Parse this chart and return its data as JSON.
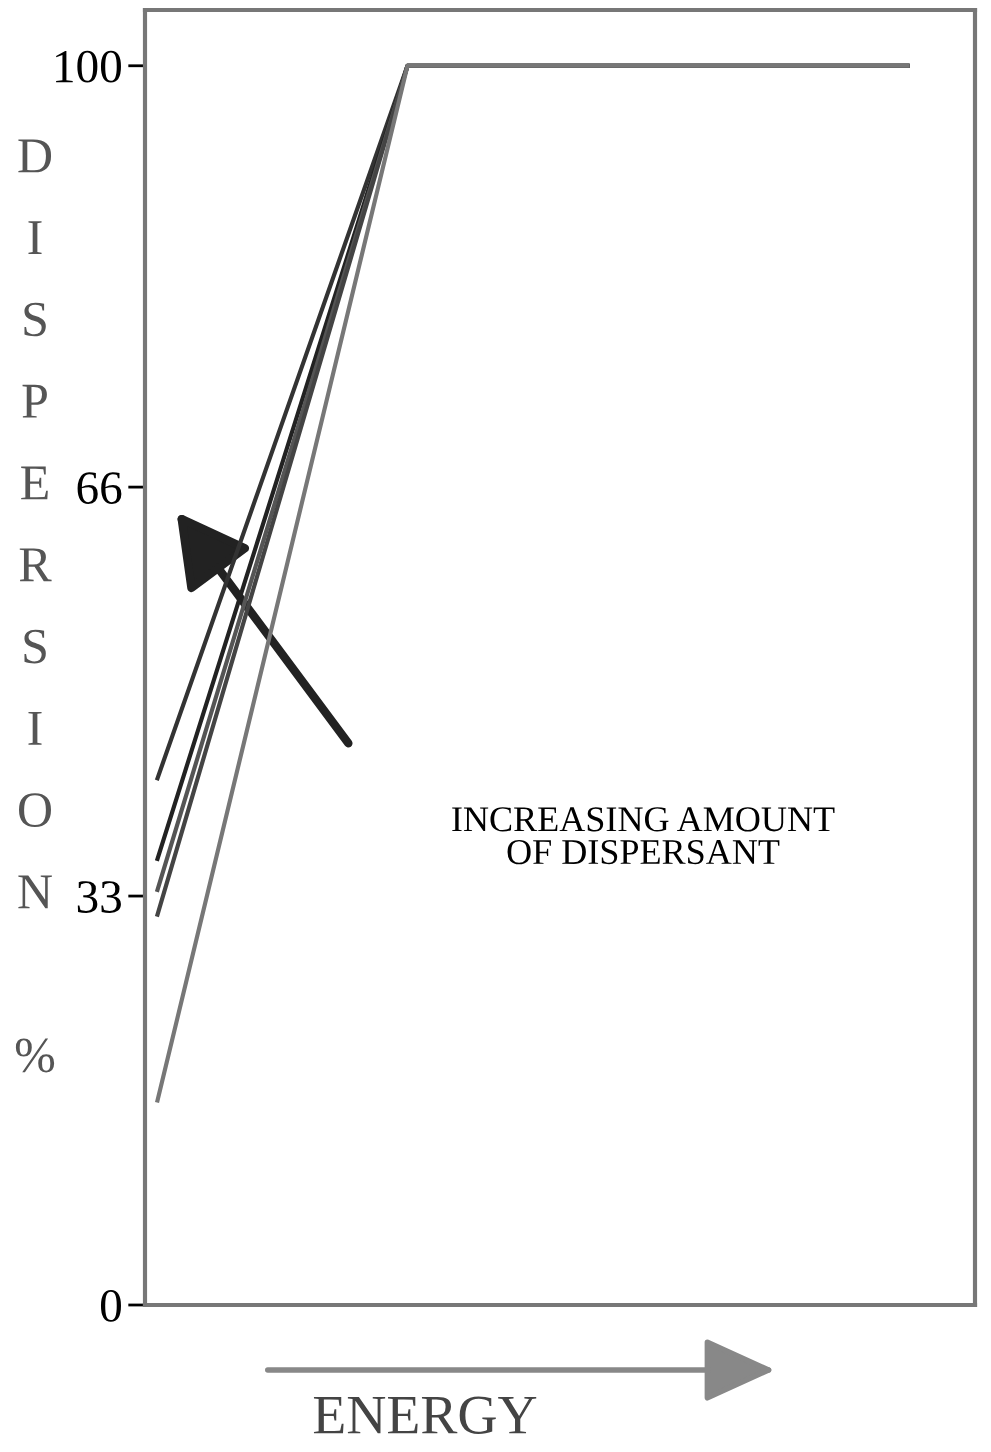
{
  "chart_data": {
    "type": "line",
    "xlabel": "ENERGY",
    "ylabel": "DISPERSION %",
    "annotations": [
      "INCREASING AMOUNT\nOF DISPERSANT"
    ],
    "categories": [
      null,
      null,
      null,
      null
    ],
    "series": [
      {
        "color": "#333333",
        "values": [
          42.5,
          100,
          100,
          100
        ]
      },
      {
        "color": "#222222",
        "values": [
          36,
          100,
          100,
          100
        ]
      },
      {
        "color": "#555555",
        "values": [
          33.5,
          100,
          100,
          100
        ]
      },
      {
        "color": "#444444",
        "values": [
          31.5,
          100,
          100,
          100
        ]
      },
      {
        "color": "#777777",
        "values": [
          16.5,
          100,
          100,
          100
        ]
      }
    ],
    "ylim": [
      0,
      104.5
    ],
    "yticks": [
      0,
      33,
      66,
      100
    ],
    "tick_labels": "y",
    "grid": false,
    "legend": false,
    "marker": "none",
    "line_style": "solid"
  }
}
